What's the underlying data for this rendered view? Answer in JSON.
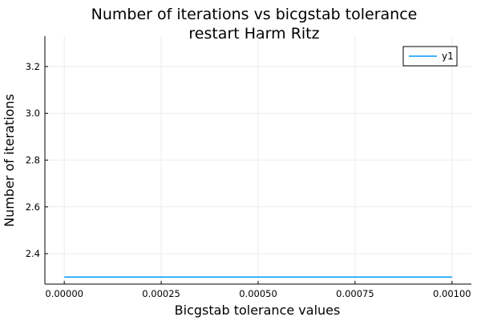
{
  "chart_data": {
    "type": "line",
    "title_line1": "Number of iterations vs bicgstab tolerance",
    "title_line2": "restart Harm Ritz",
    "xlabel": "Bicgstab tolerance values",
    "ylabel": "Number of iterations",
    "xlim": [
      -5e-05,
      0.00105
    ],
    "ylim": [
      2.27,
      3.33
    ],
    "xticks": [
      0,
      0.00025,
      0.0005,
      0.00075,
      0.001
    ],
    "xtick_labels": [
      "0.00000",
      "0.00025",
      "0.00050",
      "0.00075",
      "0.00100"
    ],
    "yticks": [
      2.4,
      2.6,
      2.8,
      3.0,
      3.2
    ],
    "ytick_labels": [
      "2.4",
      "2.6",
      "2.8",
      "3.0",
      "3.2"
    ],
    "grid": true,
    "legend_position": "top-right",
    "series": [
      {
        "name": "y1",
        "color": "#009af9",
        "x": [
          0,
          0.001
        ],
        "y": [
          2.3,
          2.3
        ]
      }
    ]
  }
}
